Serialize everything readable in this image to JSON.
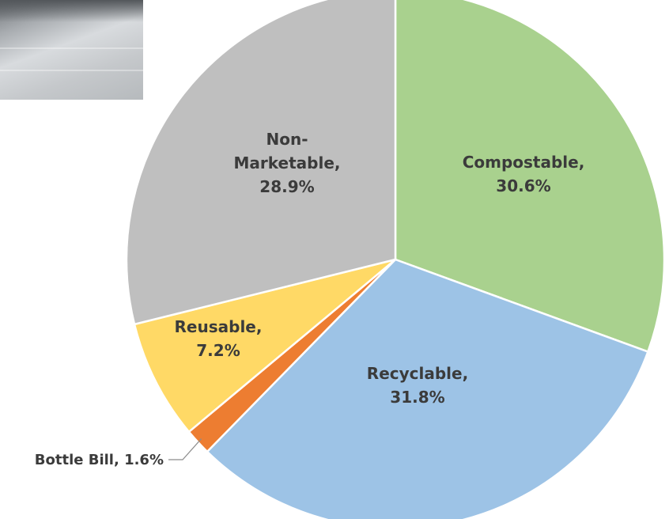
{
  "chart_data": {
    "type": "pie",
    "slices": [
      {
        "label": "Compostable",
        "value": 30.6,
        "display": "30.6%",
        "color": "#a9d18e"
      },
      {
        "label": "Recyclable",
        "value": 31.8,
        "display": "31.8%",
        "color": "#9dc3e6"
      },
      {
        "label": "Bottle Bill",
        "value": 1.6,
        "display": "1.6%",
        "color": "#ed7d31"
      },
      {
        "label": "Reusable",
        "value": 7.2,
        "display": "7.2%",
        "color": "#ffd966"
      },
      {
        "label": "Non-Marketable",
        "value": 28.9,
        "display": "28.9%",
        "color": "#bfbfbf"
      }
    ],
    "label_lines": [
      [
        "Compostable,",
        "30.6%"
      ],
      [
        "Recyclable,",
        "31.8%"
      ],
      [
        "Bottle Bill, 1.6%"
      ],
      [
        "Reusable,",
        "7.2%"
      ],
      [
        "Non-",
        "Marketable,",
        "28.9%"
      ]
    ],
    "start_angle_deg": 0,
    "direction": "clockwise"
  }
}
